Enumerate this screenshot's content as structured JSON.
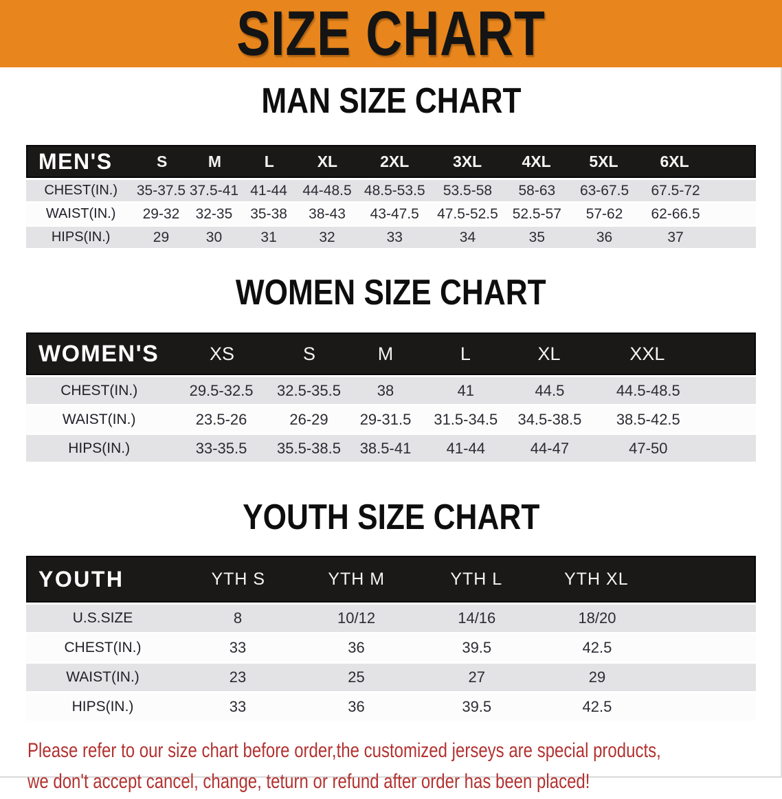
{
  "theme": {
    "accent_orange": "#E8861D",
    "bar_black": "#1B1818",
    "stripe_gray": "#E3E3E5",
    "disclaimer_red": "#B23230"
  },
  "banner": {
    "title": "SIZE CHART"
  },
  "sections": {
    "men": {
      "heading": "MAN SIZE CHART",
      "corner": "MEN'S",
      "sizes": [
        "S",
        "M",
        "L",
        "XL",
        "2XL",
        "3XL",
        "4XL",
        "5XL",
        "6XL"
      ],
      "rows": [
        {
          "label": "CHEST(IN.)",
          "values": [
            "35-37.5",
            "37.5-41",
            "41-44",
            "44-48.5",
            "48.5-53.5",
            "53.5-58",
            "58-63",
            "63-67.5",
            "67.5-72"
          ]
        },
        {
          "label": "WAIST(IN.)",
          "values": [
            "29-32",
            "32-35",
            "35-38",
            "38-43",
            "43-47.5",
            "47.5-52.5",
            "52.5-57",
            "57-62",
            "62-66.5"
          ]
        },
        {
          "label": "HIPS(IN.)",
          "values": [
            "29",
            "30",
            "31",
            "32",
            "33",
            "34",
            "35",
            "36",
            "37"
          ]
        }
      ]
    },
    "women": {
      "heading": "WOMEN SIZE CHART",
      "corner": "WOMEN'S",
      "sizes": [
        "XS",
        "S",
        "M",
        "L",
        "XL",
        "XXL"
      ],
      "rows": [
        {
          "label": "CHEST(IN.)",
          "values": [
            "29.5-32.5",
            "32.5-35.5",
            "38",
            "41",
            "44.5",
            "44.5-48.5"
          ]
        },
        {
          "label": "WAIST(IN.)",
          "values": [
            "23.5-26",
            "26-29",
            "29-31.5",
            "31.5-34.5",
            "34.5-38.5",
            "38.5-42.5"
          ]
        },
        {
          "label": "HIPS(IN.)",
          "values": [
            "33-35.5",
            "35.5-38.5",
            "38.5-41",
            "41-44",
            "44-47",
            "47-50"
          ]
        }
      ]
    },
    "youth": {
      "heading": "YOUTH SIZE CHART",
      "corner": "YOUTH",
      "sizes": [
        "YTH S",
        "YTH M",
        "YTH L",
        "YTH XL"
      ],
      "rows": [
        {
          "label": "U.S.SIZE",
          "values": [
            "8",
            "10/12",
            "14/16",
            "18/20"
          ]
        },
        {
          "label": "CHEST(IN.)",
          "values": [
            "33",
            "36",
            "39.5",
            "42.5"
          ]
        },
        {
          "label": "WAIST(IN.)",
          "values": [
            "23",
            "25",
            "27",
            "29"
          ]
        },
        {
          "label": "HIPS(IN.)",
          "values": [
            "33",
            "36",
            "39.5",
            "42.5"
          ]
        }
      ]
    }
  },
  "disclaimer": {
    "line1": "Please refer to our size chart before order,the customized jerseys are special products,",
    "line2": "we don't accept cancel, change, teturn or refund after order has been placed!"
  }
}
